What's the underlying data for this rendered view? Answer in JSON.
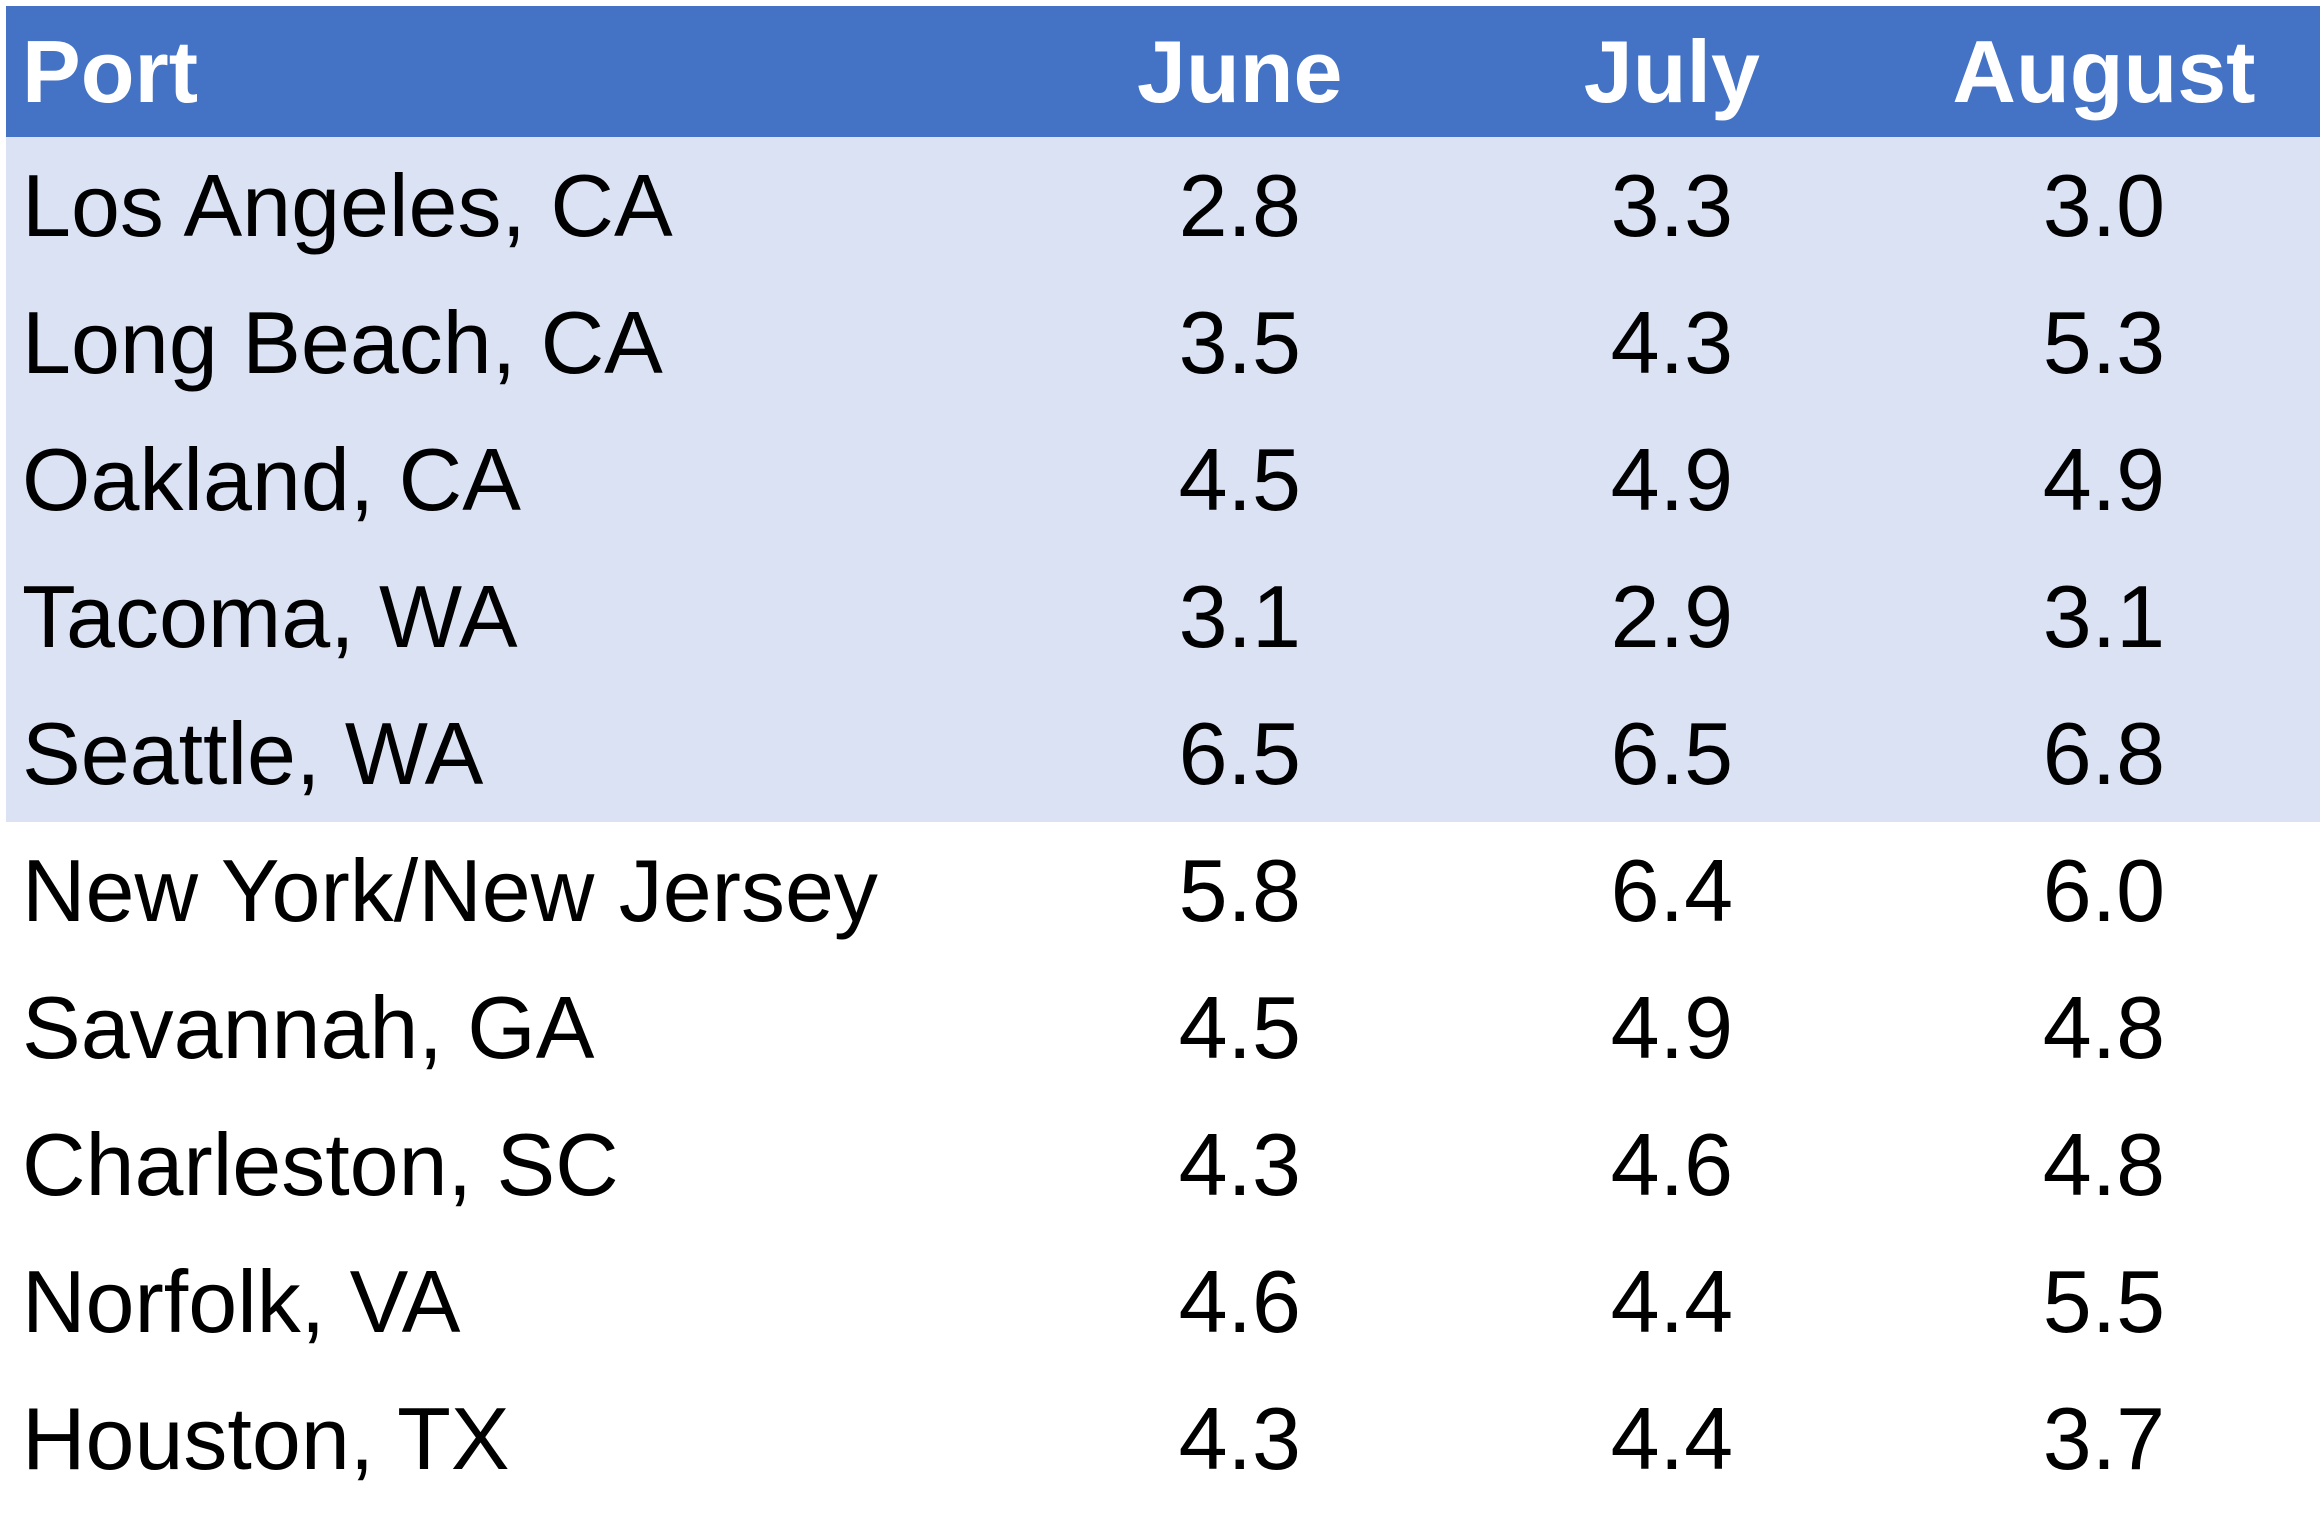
{
  "chart_data": {
    "type": "table",
    "columns": [
      "Port",
      "June",
      "July",
      "August"
    ],
    "rows": [
      {
        "port": "Los Angeles, CA",
        "values": [
          "2.8",
          "3.3",
          "3.0"
        ],
        "shaded": true
      },
      {
        "port": "Long Beach, CA",
        "values": [
          "3.5",
          "4.3",
          "5.3"
        ],
        "shaded": true
      },
      {
        "port": "Oakland, CA",
        "values": [
          "4.5",
          "4.9",
          "4.9"
        ],
        "shaded": true
      },
      {
        "port": "Tacoma, WA",
        "values": [
          "3.1",
          "2.9",
          "3.1"
        ],
        "shaded": true
      },
      {
        "port": "Seattle, WA",
        "values": [
          "6.5",
          "6.5",
          "6.8"
        ],
        "shaded": true
      },
      {
        "port": "New York/New Jersey",
        "values": [
          "5.8",
          "6.4",
          "6.0"
        ],
        "shaded": false
      },
      {
        "port": "Savannah, GA",
        "values": [
          "4.5",
          "4.9",
          "4.8"
        ],
        "shaded": false
      },
      {
        "port": "Charleston, SC",
        "values": [
          "4.3",
          "4.6",
          "4.8"
        ],
        "shaded": false
      },
      {
        "port": "Norfolk, VA",
        "values": [
          "4.6",
          "4.4",
          "5.5"
        ],
        "shaded": false
      },
      {
        "port": "Houston, TX",
        "values": [
          "4.3",
          "4.4",
          "3.7"
        ],
        "shaded": false
      }
    ]
  },
  "colors": {
    "header_bg": "#4472C4",
    "header_text": "#FFFFFF",
    "shaded_row_bg": "#DAE2F3"
  }
}
